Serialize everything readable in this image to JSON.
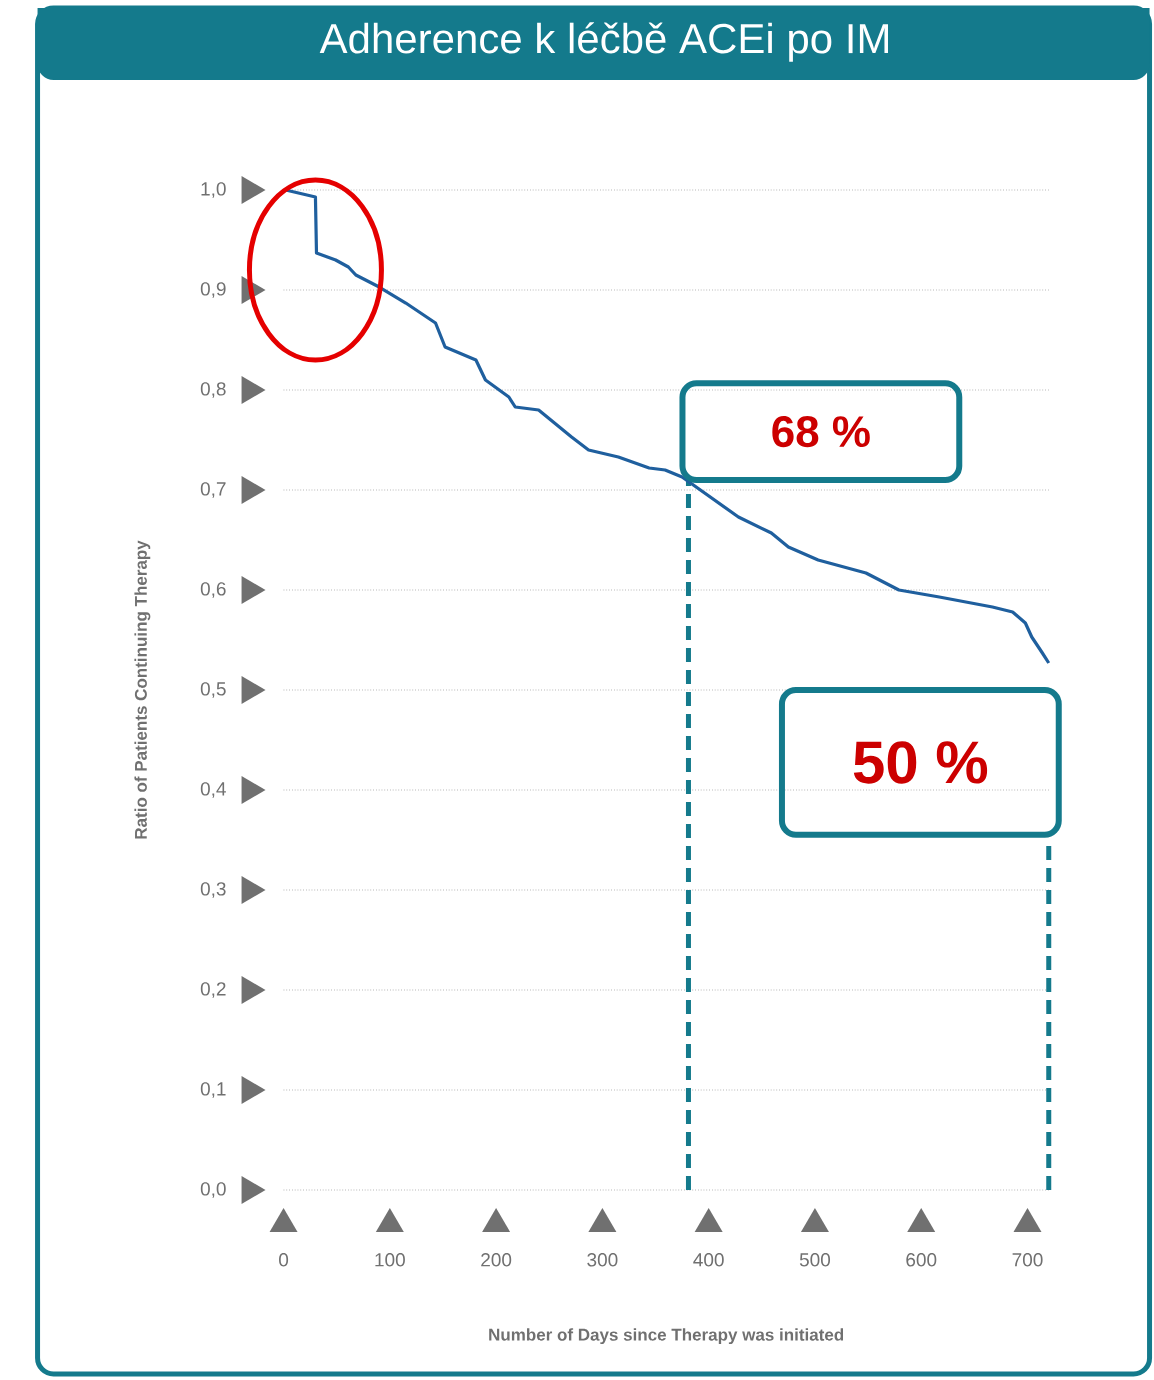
{
  "chart_data": {
    "type": "line",
    "title": "Adherence k léčbě ACEi po IM",
    "xlabel": "Number of Days since Therapy was initiated",
    "ylabel": "Ratio of Patients Continuing Therapy",
    "x": [
      2,
      30,
      31,
      49,
      61,
      68,
      90,
      115,
      143,
      152,
      181,
      190,
      212,
      218,
      240,
      271,
      287,
      315,
      344,
      359,
      375,
      428,
      459,
      475,
      503,
      548,
      579,
      617,
      667,
      686,
      698,
      704,
      714,
      720
    ],
    "series": [
      {
        "color": "#1f5f9e",
        "values": [
          1.0,
          0.993,
          0.937,
          0.93,
          0.923,
          0.915,
          0.903,
          0.887,
          0.867,
          0.843,
          0.83,
          0.81,
          0.793,
          0.783,
          0.78,
          0.753,
          0.74,
          0.733,
          0.722,
          0.72,
          0.713,
          0.673,
          0.657,
          0.643,
          0.63,
          0.617,
          0.6,
          0.593,
          0.583,
          0.578,
          0.567,
          0.553,
          0.537,
          0.527
        ]
      }
    ],
    "xlim": [
      0,
      720
    ],
    "ylim": [
      0,
      1
    ],
    "xticks": [
      0,
      100,
      200,
      300,
      400,
      500,
      600,
      700
    ],
    "yticks": [
      {
        "value": 0,
        "label": "0,0"
      },
      {
        "value": 0.1,
        "label": "0,1"
      },
      {
        "value": 0.2,
        "label": "0,2"
      },
      {
        "value": 0.3,
        "label": "0,3"
      },
      {
        "value": 0.4,
        "label": "0,4"
      },
      {
        "value": 0.5,
        "label": "0,5"
      },
      {
        "value": 0.6,
        "label": "0,6"
      },
      {
        "value": 0.7,
        "label": "0,7"
      },
      {
        "value": 0.8,
        "label": "0,8"
      },
      {
        "value": 0.9,
        "label": "0,9"
      },
      {
        "value": 1.0,
        "label": "1,0"
      }
    ],
    "grid": "y",
    "annotations": [
      "68 %",
      "50 %"
    ],
    "ref_lines": [
      {
        "axis": "x",
        "value": 381,
        "color": "#147a8c",
        "line_style": "dashed"
      },
      {
        "axis": "x",
        "value": 720,
        "color": "#147a8c",
        "line_style": "dashed"
      }
    ]
  }
}
